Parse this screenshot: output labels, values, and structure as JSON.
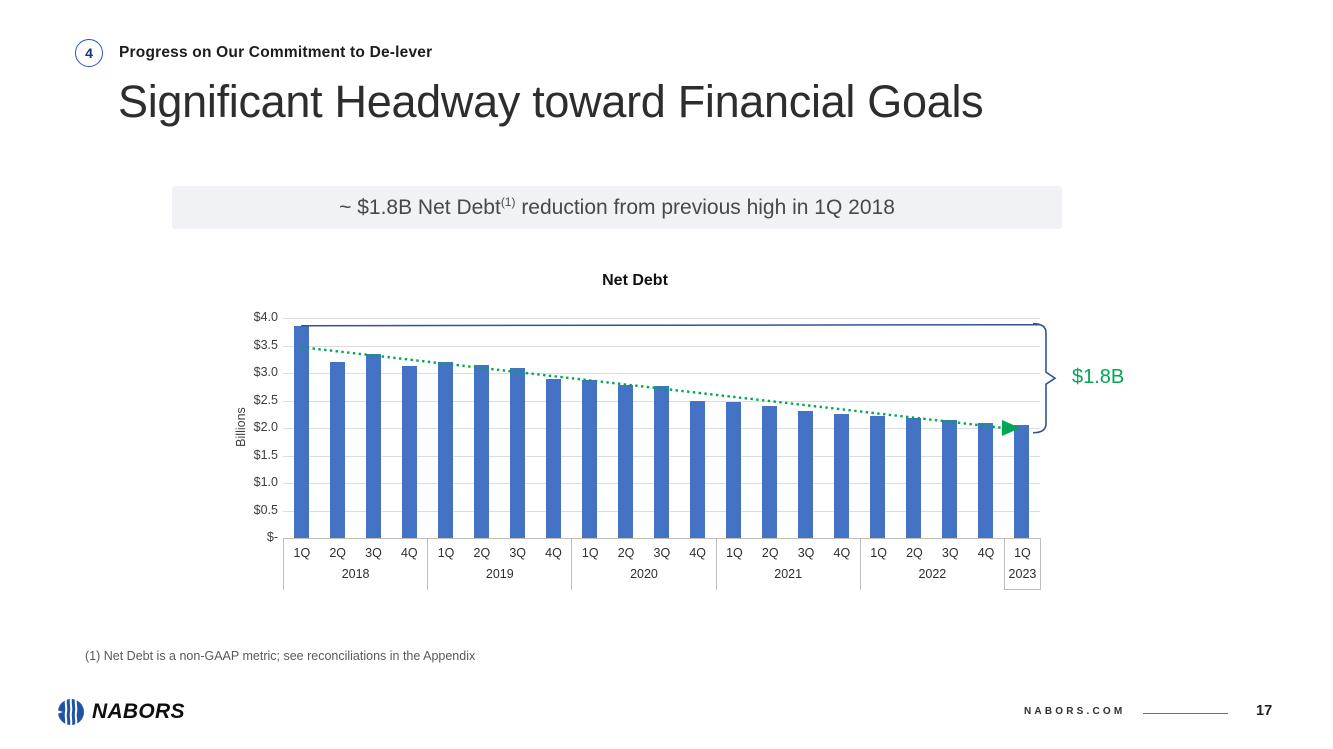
{
  "slide": {
    "kicker_number": "4",
    "kicker": "Progress on Our Commitment to De-lever",
    "title": "Significant Headway toward Financial Goals",
    "banner": {
      "prefix": "~ $1.8B Net Debt",
      "superscript": "(1)",
      "suffix": " reduction from previous high in 1Q 2018"
    },
    "footnote": "(1) Net Debt is a non-GAAP metric; see reconciliations in the Appendix",
    "logo_text": "NABORS",
    "website": "NABORS.COM",
    "page_number": "17"
  },
  "chart_data": {
    "type": "bar",
    "title": "Net Debt",
    "ylabel": "Billions",
    "ylim": [
      0,
      4.0
    ],
    "ytick_labels": [
      "$4.0",
      "$3.5",
      "$3.0",
      "$2.5",
      "$2.0",
      "$1.5",
      "$1.0",
      "$0.5",
      "$-"
    ],
    "grid": true,
    "bar_color": "#4472C4",
    "categories": [
      "1Q 2018",
      "2Q 2018",
      "3Q 2018",
      "4Q 2018",
      "1Q 2019",
      "2Q 2019",
      "3Q 2019",
      "4Q 2019",
      "1Q 2020",
      "2Q 2020",
      "3Q 2020",
      "4Q 2020",
      "1Q 2021",
      "2Q 2021",
      "3Q 2021",
      "4Q 2021",
      "1Q 2022",
      "2Q 2022",
      "3Q 2022",
      "4Q 2022",
      "1Q 2023"
    ],
    "values": [
      3.86,
      3.2,
      3.35,
      3.12,
      3.2,
      3.15,
      3.1,
      2.89,
      2.88,
      2.79,
      2.77,
      2.5,
      2.48,
      2.4,
      2.31,
      2.25,
      2.21,
      2.18,
      2.14,
      2.09,
      2.06
    ],
    "years": [
      {
        "label": "2018",
        "quarters": [
          "1Q",
          "2Q",
          "3Q",
          "4Q"
        ]
      },
      {
        "label": "2019",
        "quarters": [
          "1Q",
          "2Q",
          "3Q",
          "4Q"
        ]
      },
      {
        "label": "2020",
        "quarters": [
          "1Q",
          "2Q",
          "3Q",
          "4Q"
        ]
      },
      {
        "label": "2021",
        "quarters": [
          "1Q",
          "2Q",
          "3Q",
          "4Q"
        ]
      },
      {
        "label": "2022",
        "quarters": [
          "1Q",
          "2Q",
          "3Q",
          "4Q"
        ]
      },
      {
        "label": "2023",
        "quarters": [
          "1Q"
        ]
      }
    ],
    "annotations": {
      "reference_line_value": 3.86,
      "reference_line_color": "#2F5597",
      "trend_line": {
        "start_value": 3.47,
        "end_value": 2.0,
        "color": "#00A651",
        "style": "dotted",
        "arrow": true
      },
      "bracket_label": "$1.8B",
      "bracket_color": "#2F5597",
      "bracket_label_color": "#00A651"
    }
  }
}
